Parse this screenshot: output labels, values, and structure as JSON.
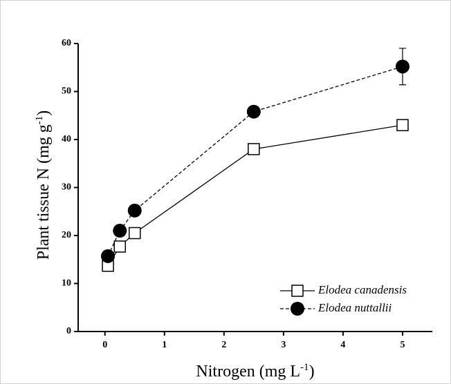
{
  "chart_data": {
    "type": "line",
    "xlabel": [
      "Nitrogen (mg L",
      "-1",
      ")"
    ],
    "ylabel": [
      "Plant tissue N (mg g",
      "-1",
      ")"
    ],
    "x": [
      0.05,
      0.25,
      0.5,
      2.5,
      5
    ],
    "series": [
      {
        "name": "Elodea canadensis",
        "color": "#000000",
        "marker": "square",
        "dashed": false,
        "values": [
          13.7,
          17.7,
          20.5,
          38,
          43
        ],
        "errors": [
          0.8,
          0.4,
          0.4,
          0.6,
          0.5
        ]
      },
      {
        "name": "Elodea nuttallii",
        "color": "#000000",
        "marker": "circle",
        "dashed": true,
        "values": [
          15.7,
          21,
          25.2,
          45.8,
          55.2
        ],
        "errors": [
          0.5,
          0.5,
          0.5,
          0.7,
          3.8
        ]
      }
    ],
    "xlim": [
      -0.45,
      5.5
    ],
    "xticks": [
      0,
      1,
      2,
      3,
      4,
      5
    ],
    "ylim": [
      0,
      60
    ],
    "yticks": [
      0,
      10,
      20,
      30,
      40,
      50,
      60
    ],
    "grid": false,
    "legend": "lower right"
  }
}
